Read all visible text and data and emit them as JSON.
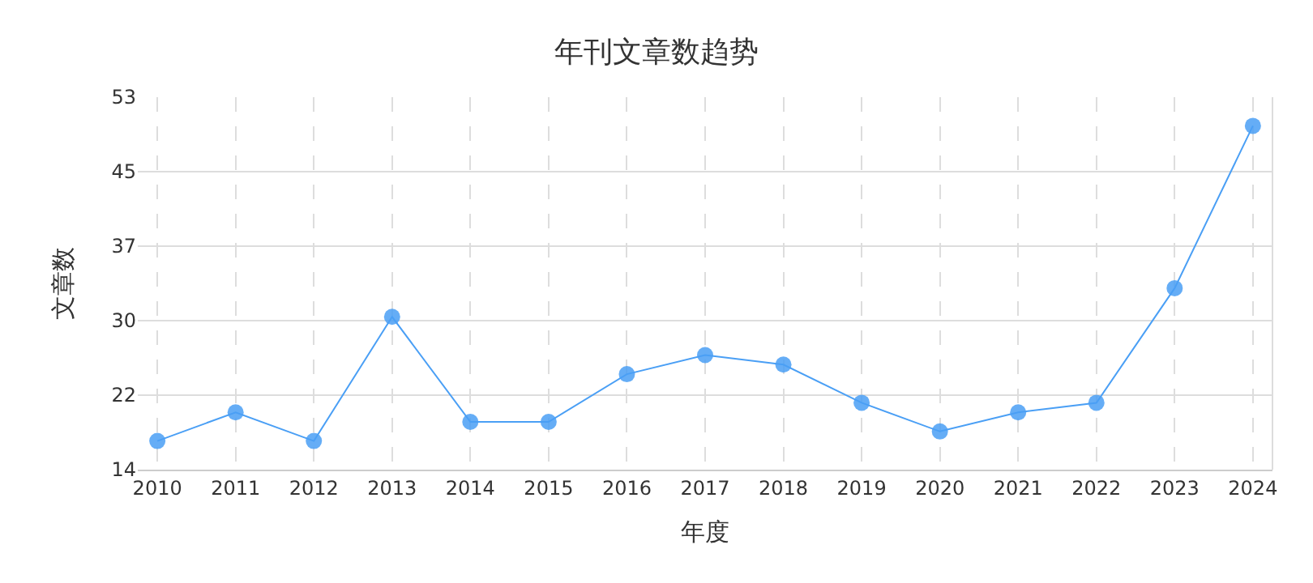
{
  "chart_data": {
    "type": "line",
    "title": "年刊文章数趋势",
    "xlabel": "年度",
    "ylabel": "文章数",
    "categories": [
      "2010",
      "2011",
      "2012",
      "2013",
      "2014",
      "2015",
      "2016",
      "2017",
      "2018",
      "2019",
      "2020",
      "2021",
      "2022",
      "2023",
      "2024"
    ],
    "series": [
      {
        "color": "#4a9ff5",
        "values": [
          17,
          20,
          17,
          30,
          19,
          19,
          24,
          26,
          25,
          21,
          18,
          20,
          21,
          33,
          50
        ]
      }
    ],
    "ylim": [
      14,
      53
    ],
    "yticks": [
      14,
      {
        "value": 21.8,
        "label": "22"
      },
      {
        "value": 29.6,
        "label": "30"
      },
      {
        "value": 37.4,
        "label": "37"
      },
      {
        "value": 45.2,
        "label": "45"
      },
      53
    ],
    "grid": true,
    "marker": "circle",
    "line_style": "solid",
    "legend": false
  }
}
